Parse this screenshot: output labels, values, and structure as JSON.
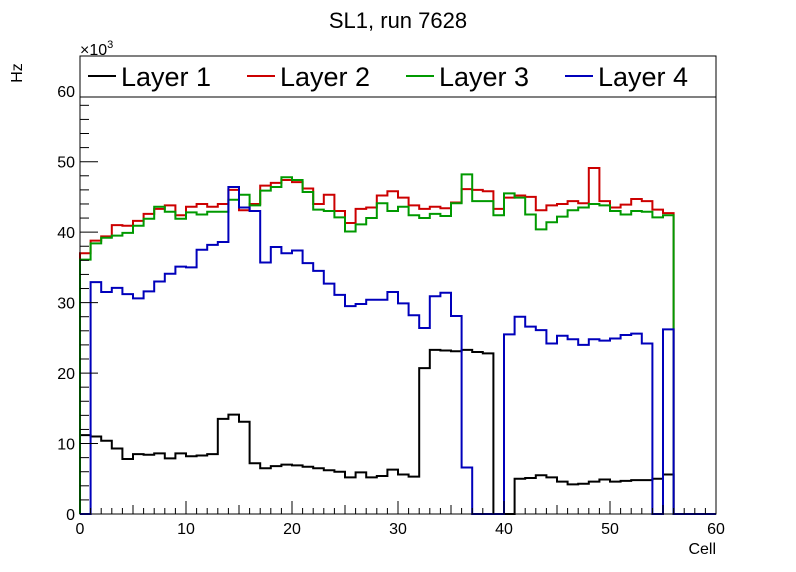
{
  "chart_data": {
    "type": "line",
    "style": "step-histogram",
    "title": "SL1, run 7628",
    "xlabel": "Cell",
    "ylabel": "Hz",
    "y_multiplier": "×10",
    "y_multiplier_exp": "3",
    "xlim": [
      0,
      60
    ],
    "ylim": [
      0,
      65
    ],
    "x_ticks": [
      "0",
      "10",
      "20",
      "30",
      "40",
      "50",
      "60"
    ],
    "y_ticks": [
      "0",
      "10",
      "20",
      "30",
      "40",
      "50",
      "60"
    ],
    "bin_width": 1,
    "series": [
      {
        "name": "Layer 1",
        "color": "#000000",
        "values": [
          11.2,
          11.0,
          10.4,
          9.3,
          7.8,
          8.5,
          8.4,
          8.6,
          7.9,
          8.6,
          8.2,
          8.3,
          8.5,
          13.5,
          14.1,
          13.1,
          7.2,
          6.5,
          6.8,
          7.0,
          6.9,
          6.7,
          6.5,
          6.2,
          6.0,
          5.2,
          5.9,
          5.2,
          5.4,
          6.3,
          5.6,
          5.3,
          20.7,
          23.3,
          23.2,
          23.1,
          23.3,
          23.0,
          22.8,
          0,
          0,
          5.0,
          5.1,
          5.5,
          5.2,
          4.6,
          4.2,
          4.3,
          4.6,
          4.9,
          4.6,
          4.7,
          4.8,
          4.8,
          5.0,
          5.6
        ]
      },
      {
        "name": "Layer 2",
        "color": "#cc0000",
        "values": [
          37.0,
          38.8,
          39.4,
          41.0,
          40.9,
          41.6,
          42.6,
          43.3,
          43.8,
          42.4,
          43.6,
          44.0,
          43.6,
          44.0,
          46.0,
          43.1,
          44.0,
          46.6,
          47.0,
          47.4,
          47.1,
          46.2,
          44.0,
          45.3,
          43.0,
          41.3,
          43.3,
          43.5,
          45.2,
          45.8,
          44.9,
          43.8,
          43.3,
          43.6,
          43.4,
          44.2,
          46.1,
          46.0,
          45.8,
          43.3,
          44.9,
          45.2,
          45.0,
          43.1,
          43.8,
          44.0,
          44.4,
          44.1,
          49.1,
          44.4,
          43.5,
          43.9,
          44.7,
          44.4,
          43.2,
          42.7
        ]
      },
      {
        "name": "Layer 3",
        "color": "#009900",
        "values": [
          36.1,
          38.4,
          39.2,
          39.5,
          39.9,
          40.9,
          41.9,
          43.6,
          42.9,
          41.9,
          42.8,
          42.5,
          42.9,
          42.9,
          44.6,
          45.3,
          43.8,
          45.9,
          46.4,
          47.8,
          47.4,
          45.7,
          43.2,
          43.0,
          42.1,
          40.1,
          41.1,
          42.0,
          44.1,
          43.0,
          43.6,
          42.4,
          42.0,
          42.6,
          42.3,
          44.1,
          48.2,
          44.4,
          44.4,
          42.4,
          45.5,
          44.9,
          42.5,
          40.4,
          41.4,
          42.2,
          43.1,
          43.5,
          44.0,
          43.8,
          43.0,
          42.5,
          43.0,
          42.9,
          42.1,
          42.4
        ]
      },
      {
        "name": "Layer 4",
        "color": "#0000bb",
        "values": [
          0,
          32.9,
          31.5,
          32.1,
          31.2,
          30.6,
          31.6,
          33.0,
          34.1,
          35.1,
          35.0,
          37.5,
          38.2,
          38.6,
          46.4,
          43.5,
          43.0,
          35.7,
          37.9,
          37.0,
          37.4,
          35.6,
          34.5,
          32.7,
          31.1,
          29.5,
          29.8,
          30.4,
          30.4,
          31.5,
          29.9,
          28.2,
          26.4,
          30.9,
          31.4,
          28.1,
          6.6,
          0,
          0,
          0,
          25.5,
          28.0,
          26.6,
          26.1,
          24.2,
          25.3,
          24.8,
          24.0,
          24.8,
          24.6,
          24.9,
          25.4,
          25.6,
          24.2,
          0,
          26.2
        ]
      }
    ],
    "legend": {
      "placement": "top",
      "entries": [
        "Layer 1",
        "Layer 2",
        "Layer 3",
        "Layer 4"
      ]
    }
  }
}
